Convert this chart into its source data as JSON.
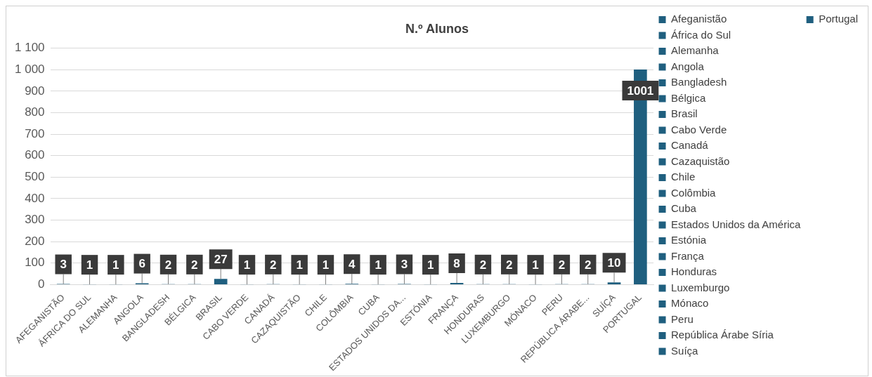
{
  "chart_data": {
    "type": "bar",
    "title": "N.º Alunos",
    "stacked": true,
    "grid": "y",
    "legend": "right",
    "data_labels": true,
    "categories": [
      "AFEGANISTÃO",
      "ÁFRICA DO SUL",
      "ALEMANHA",
      "ANGOLA",
      "BANGLADESH",
      "BÉLGICA",
      "BRASIL",
      "CABO VERDE",
      "CANADÁ",
      "CAZAQUISTÃO",
      "CHILE",
      "COLÔMBIA",
      "CUBA",
      "ESTADOS UNIDOS DA...",
      "ESTÓNIA",
      "FRANÇA",
      "HONDURAS",
      "LUXEMBURGO",
      "MÓNACO",
      "PERU",
      "REPÚBLICA ÁRABE...",
      "SUÍÇA",
      "PORTUGAL"
    ],
    "ylim": [
      0,
      1100
    ],
    "yticks": [
      0,
      100,
      200,
      300,
      400,
      500,
      600,
      700,
      800,
      900,
      {
        "value": 1000,
        "label": "1 000"
      },
      {
        "value": 1100,
        "label": "1 100"
      }
    ],
    "series": [
      {
        "name": "Afeganistão",
        "color": "#1f5f7f",
        "values": [
          3,
          null,
          null,
          null,
          null,
          null,
          null,
          null,
          null,
          null,
          null,
          null,
          null,
          null,
          null,
          null,
          null,
          null,
          null,
          null,
          null,
          null,
          null
        ]
      },
      {
        "name": "África do Sul",
        "color": "#1f5f7f",
        "values": [
          null,
          1,
          null,
          null,
          null,
          null,
          null,
          null,
          null,
          null,
          null,
          null,
          null,
          null,
          null,
          null,
          null,
          null,
          null,
          null,
          null,
          null,
          null
        ]
      },
      {
        "name": "Alemanha",
        "color": "#1f5f7f",
        "values": [
          null,
          null,
          1,
          null,
          null,
          null,
          null,
          null,
          null,
          null,
          null,
          null,
          null,
          null,
          null,
          null,
          null,
          null,
          null,
          null,
          null,
          null,
          null
        ]
      },
      {
        "name": "Angola",
        "color": "#1f5f7f",
        "values": [
          null,
          null,
          null,
          6,
          null,
          null,
          null,
          null,
          null,
          null,
          null,
          null,
          null,
          null,
          null,
          null,
          null,
          null,
          null,
          null,
          null,
          null,
          null
        ]
      },
      {
        "name": "Bangladesh",
        "color": "#1f5f7f",
        "values": [
          null,
          null,
          null,
          null,
          2,
          null,
          null,
          null,
          null,
          null,
          null,
          null,
          null,
          null,
          null,
          null,
          null,
          null,
          null,
          null,
          null,
          null,
          null
        ]
      },
      {
        "name": "Bélgica",
        "color": "#1f5f7f",
        "values": [
          null,
          null,
          null,
          null,
          null,
          2,
          null,
          null,
          null,
          null,
          null,
          null,
          null,
          null,
          null,
          null,
          null,
          null,
          null,
          null,
          null,
          null,
          null
        ]
      },
      {
        "name": "Brasil",
        "color": "#1f5f7f",
        "values": [
          null,
          null,
          null,
          null,
          null,
          null,
          27,
          null,
          null,
          null,
          null,
          null,
          null,
          null,
          null,
          null,
          null,
          null,
          null,
          null,
          null,
          null,
          null
        ]
      },
      {
        "name": "Cabo Verde",
        "color": "#1f5f7f",
        "values": [
          null,
          null,
          null,
          null,
          null,
          null,
          null,
          1,
          null,
          null,
          null,
          null,
          null,
          null,
          null,
          null,
          null,
          null,
          null,
          null,
          null,
          null,
          null
        ]
      },
      {
        "name": "Canadá",
        "color": "#1f5f7f",
        "values": [
          null,
          null,
          null,
          null,
          null,
          null,
          null,
          null,
          2,
          null,
          null,
          null,
          null,
          null,
          null,
          null,
          null,
          null,
          null,
          null,
          null,
          null,
          null
        ]
      },
      {
        "name": "Cazaquistão",
        "color": "#1f5f7f",
        "values": [
          null,
          null,
          null,
          null,
          null,
          null,
          null,
          null,
          null,
          1,
          null,
          null,
          null,
          null,
          null,
          null,
          null,
          null,
          null,
          null,
          null,
          null,
          null
        ]
      },
      {
        "name": "Chile",
        "color": "#1f5f7f",
        "values": [
          null,
          null,
          null,
          null,
          null,
          null,
          null,
          null,
          null,
          null,
          1,
          null,
          null,
          null,
          null,
          null,
          null,
          null,
          null,
          null,
          null,
          null,
          null
        ]
      },
      {
        "name": "Colômbia",
        "color": "#1f5f7f",
        "values": [
          null,
          null,
          null,
          null,
          null,
          null,
          null,
          null,
          null,
          null,
          null,
          4,
          null,
          null,
          null,
          null,
          null,
          null,
          null,
          null,
          null,
          null,
          null
        ]
      },
      {
        "name": "Cuba",
        "color": "#1f5f7f",
        "values": [
          null,
          null,
          null,
          null,
          null,
          null,
          null,
          null,
          null,
          null,
          null,
          null,
          1,
          null,
          null,
          null,
          null,
          null,
          null,
          null,
          null,
          null,
          null
        ]
      },
      {
        "name": "Estados Unidos da América",
        "color": "#1f5f7f",
        "values": [
          null,
          null,
          null,
          null,
          null,
          null,
          null,
          null,
          null,
          null,
          null,
          null,
          null,
          3,
          null,
          null,
          null,
          null,
          null,
          null,
          null,
          null,
          null
        ]
      },
      {
        "name": "Estónia",
        "color": "#1f5f7f",
        "values": [
          null,
          null,
          null,
          null,
          null,
          null,
          null,
          null,
          null,
          null,
          null,
          null,
          null,
          null,
          1,
          null,
          null,
          null,
          null,
          null,
          null,
          null,
          null
        ]
      },
      {
        "name": "França",
        "color": "#1f5f7f",
        "values": [
          null,
          null,
          null,
          null,
          null,
          null,
          null,
          null,
          null,
          null,
          null,
          null,
          null,
          null,
          null,
          8,
          null,
          null,
          null,
          null,
          null,
          null,
          null
        ]
      },
      {
        "name": "Honduras",
        "color": "#1f5f7f",
        "values": [
          null,
          null,
          null,
          null,
          null,
          null,
          null,
          null,
          null,
          null,
          null,
          null,
          null,
          null,
          null,
          null,
          2,
          null,
          null,
          null,
          null,
          null,
          null
        ]
      },
      {
        "name": "Luxemburgo",
        "color": "#1f5f7f",
        "values": [
          null,
          null,
          null,
          null,
          null,
          null,
          null,
          null,
          null,
          null,
          null,
          null,
          null,
          null,
          null,
          null,
          null,
          2,
          null,
          null,
          null,
          null,
          null
        ]
      },
      {
        "name": "Mónaco",
        "color": "#1f5f7f",
        "values": [
          null,
          null,
          null,
          null,
          null,
          null,
          null,
          null,
          null,
          null,
          null,
          null,
          null,
          null,
          null,
          null,
          null,
          null,
          1,
          null,
          null,
          null,
          null
        ]
      },
      {
        "name": "Peru",
        "color": "#1f5f7f",
        "values": [
          null,
          null,
          null,
          null,
          null,
          null,
          null,
          null,
          null,
          null,
          null,
          null,
          null,
          null,
          null,
          null,
          null,
          null,
          null,
          2,
          null,
          null,
          null
        ]
      },
      {
        "name": "República Árabe Síria",
        "color": "#1f5f7f",
        "values": [
          null,
          null,
          null,
          null,
          null,
          null,
          null,
          null,
          null,
          null,
          null,
          null,
          null,
          null,
          null,
          null,
          null,
          null,
          null,
          null,
          2,
          null,
          null
        ]
      },
      {
        "name": "Suíça",
        "color": "#1f5f7f",
        "values": [
          null,
          null,
          null,
          null,
          null,
          null,
          null,
          null,
          null,
          null,
          null,
          null,
          null,
          null,
          null,
          null,
          null,
          null,
          null,
          null,
          null,
          10,
          null
        ]
      },
      {
        "name": "Portugal",
        "color": "#1f5f7f",
        "values": [
          null,
          null,
          null,
          null,
          null,
          null,
          null,
          null,
          null,
          null,
          null,
          null,
          null,
          null,
          null,
          null,
          null,
          null,
          null,
          null,
          null,
          null,
          1001
        ]
      }
    ]
  }
}
